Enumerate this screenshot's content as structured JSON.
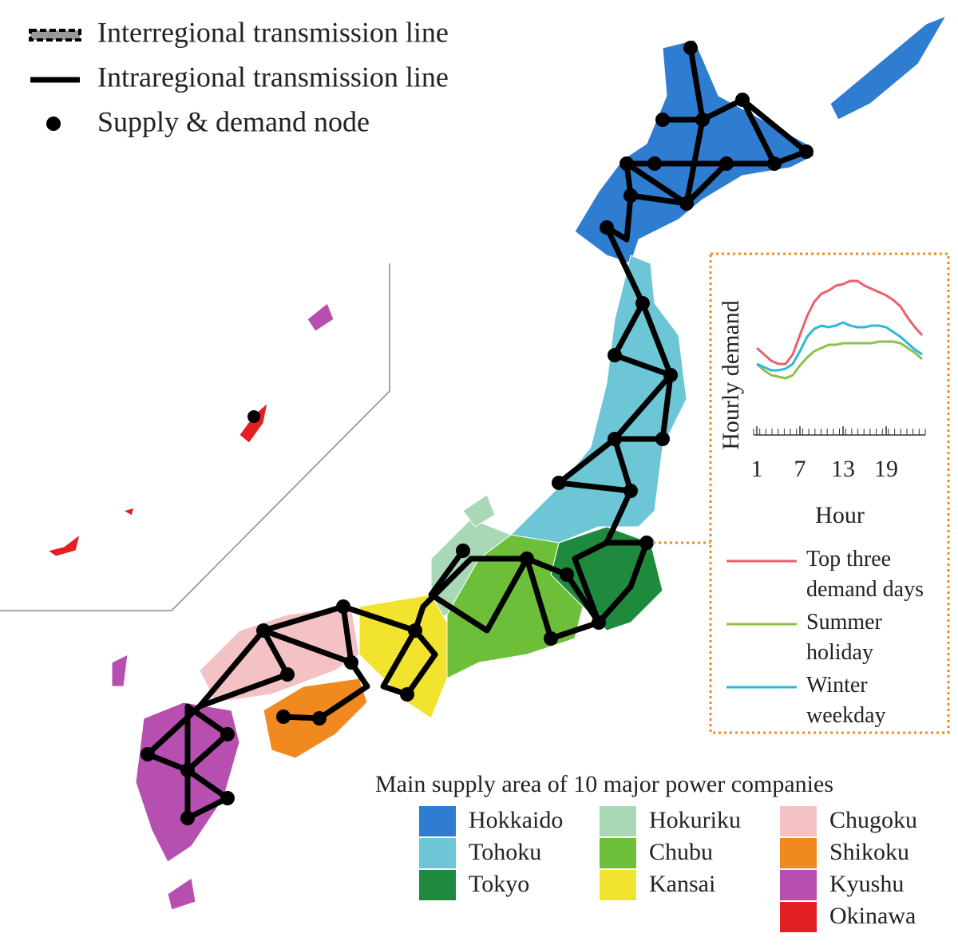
{
  "legend_top": [
    "Interregional transmission line",
    "Intraregional transmission line",
    "Supply & demand node"
  ],
  "inset": {
    "type": "line",
    "y_label": "Hourly demand",
    "x_label": "Hour",
    "xlim": [
      1,
      24
    ],
    "xticks": [
      1,
      7,
      13,
      19
    ],
    "ylim": [
      0,
      100
    ],
    "x": [
      1,
      2,
      3,
      4,
      5,
      6,
      7,
      8,
      9,
      10,
      11,
      12,
      13,
      14,
      15,
      16,
      17,
      18,
      19,
      20,
      21,
      22,
      23,
      24
    ],
    "series": [
      {
        "name": "Top three demand days",
        "color": "#e8626a",
        "values": [
          52,
          48,
          44,
          42,
          42,
          48,
          60,
          72,
          81,
          86,
          88,
          91,
          92,
          94,
          94,
          91,
          89,
          87,
          85,
          82,
          78,
          71,
          65,
          60
        ]
      },
      {
        "name": "Summer holiday",
        "color": "#8fc04a",
        "values": [
          42,
          38,
          35,
          34,
          33,
          35,
          41,
          46,
          50,
          52,
          54,
          54,
          55,
          55,
          55,
          55,
          55,
          56,
          56,
          56,
          55,
          52,
          49,
          45
        ]
      },
      {
        "name": "Winter weekday",
        "color": "#2cb8d8",
        "values": [
          42,
          40,
          38,
          38,
          39,
          42,
          50,
          59,
          64,
          66,
          65,
          66,
          68,
          66,
          65,
          65,
          66,
          66,
          65,
          62,
          59,
          55,
          51,
          48
        ]
      }
    ]
  },
  "areas": {
    "title": "Main supply area of 10 major power companies",
    "items": [
      {
        "name": "Hokkaido",
        "color": "#2e7dd1"
      },
      {
        "name": "Tohoku",
        "color": "#6cc6d6"
      },
      {
        "name": "Tokyo",
        "color": "#1f8a3e"
      },
      {
        "name": "Hokuriku",
        "color": "#a8d8b5"
      },
      {
        "name": "Chubu",
        "color": "#6dbf3a"
      },
      {
        "name": "Kansai",
        "color": "#f2e32f"
      },
      {
        "name": "Chugoku",
        "color": "#f4c2c4"
      },
      {
        "name": "Shikoku",
        "color": "#f08a20"
      },
      {
        "name": "Kyushu",
        "color": "#b64fb0"
      },
      {
        "name": "Okinawa",
        "color": "#e31e24"
      }
    ]
  }
}
